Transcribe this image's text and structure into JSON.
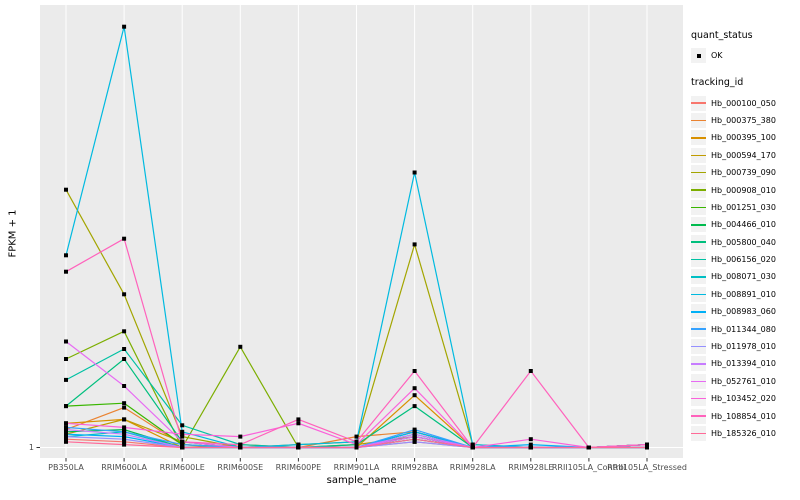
{
  "figure": {
    "y_axis": {
      "title": "FPKM + 1",
      "tick_labels": [
        "1"
      ]
    },
    "x_axis": {
      "title": "sample_name"
    }
  },
  "legend": {
    "quant_status": {
      "title": "quant_status",
      "items": [
        {
          "label": "OK",
          "shape": "black-point"
        }
      ]
    },
    "tracking": {
      "title": "tracking_id"
    }
  },
  "colors": {
    "panel_bg": "#EBEBEB",
    "grid": "#FFFFFF",
    "point": "#000000",
    "tick_text": "#4D4D4D",
    "tick_mark": "#333333",
    "legend_key_bg": "#F2F2F2"
  },
  "chart_data": {
    "type": "line",
    "title": "",
    "xlabel": "sample_name",
    "ylabel": "FPKM + 1",
    "y_scale": "log10",
    "ylim": [
      1,
      1600
    ],
    "yticks": [
      "1"
    ],
    "grid": "vertical-major-plus-y1",
    "legend_position": "right",
    "point_label": "OK",
    "categories": [
      "PB350LA",
      "RRIM600LA",
      "RRIM600LE",
      "RRIM600SE",
      "RRIM600PE",
      "RRIM901LA",
      "RRIM928BA",
      "RRIM928LA",
      "RRIM928LE",
      "RRII105LA_Control",
      "RRII105LA_Stressed"
    ],
    "series": [
      {
        "name": "Hb_000100_050",
        "color": "#F8766D",
        "values": [
          1.15,
          1.1,
          1.0,
          1.0,
          1.0,
          1.0,
          1.1,
          1.0,
          1.0,
          1.0,
          1.05
        ]
      },
      {
        "name": "Hb_000375_380",
        "color": "#EA8331",
        "values": [
          1.35,
          1.95,
          1.05,
          1.0,
          1.0,
          1.2,
          1.3,
          1.0,
          1.0,
          1.0,
          1.05
        ]
      },
      {
        "name": "Hb_000395_100",
        "color": "#D89000",
        "values": [
          1.5,
          1.6,
          1.0,
          1.05,
          1.0,
          1.0,
          2.4,
          1.0,
          1.0,
          1.0,
          1.0
        ]
      },
      {
        "name": "Hb_000594_170",
        "color": "#C09B00",
        "values": [
          1.25,
          1.6,
          1.1,
          1.0,
          1.0,
          1.05,
          1.2,
          1.0,
          1.0,
          1.0,
          1.05
        ]
      },
      {
        "name": "Hb_000739_090",
        "color": "#A3A500",
        "values": [
          75,
          13,
          1.2,
          1.0,
          1.05,
          1.1,
          30,
          1.05,
          1.0,
          1.0,
          1.05
        ]
      },
      {
        "name": "Hb_000908_010",
        "color": "#7CAE00",
        "values": [
          4.4,
          7.0,
          1.0,
          5.4,
          1.0,
          1.0,
          1.3,
          1.0,
          1.0,
          1.0,
          1.0
        ]
      },
      {
        "name": "Hb_001251_030",
        "color": "#39B600",
        "values": [
          2.0,
          2.1,
          1.05,
          1.0,
          1.0,
          1.0,
          1.2,
          1.0,
          1.0,
          1.0,
          1.05
        ]
      },
      {
        "name": "Hb_004466_010",
        "color": "#00BB4E",
        "values": [
          1.3,
          1.35,
          1.0,
          1.0,
          1.0,
          1.0,
          1.15,
          1.0,
          1.0,
          1.0,
          1.0
        ]
      },
      {
        "name": "Hb_005800_040",
        "color": "#00BF7D",
        "values": [
          2.0,
          4.4,
          1.1,
          1.0,
          1.0,
          1.05,
          2.0,
          1.0,
          1.0,
          1.0,
          1.05
        ]
      },
      {
        "name": "Hb_006156_020",
        "color": "#00C1A3",
        "values": [
          3.1,
          5.2,
          1.45,
          1.05,
          1.0,
          1.0,
          1.25,
          1.0,
          1.0,
          1.0,
          1.0
        ]
      },
      {
        "name": "Hb_008071_030",
        "color": "#00BFC4",
        "values": [
          1.2,
          1.3,
          1.0,
          1.0,
          1.0,
          1.0,
          1.2,
          1.0,
          1.0,
          1.0,
          1.05
        ]
      },
      {
        "name": "Hb_008891_010",
        "color": "#00BAE0",
        "values": [
          25,
          1150,
          1.3,
          1.0,
          1.05,
          1.1,
          100,
          1.05,
          1.0,
          1.0,
          1.05
        ]
      },
      {
        "name": "Hb_008983_060",
        "color": "#00B0F6",
        "values": [
          1.25,
          1.2,
          1.0,
          1.0,
          1.0,
          1.0,
          1.3,
          1.0,
          1.05,
          1.0,
          1.0
        ]
      },
      {
        "name": "Hb_011344_080",
        "color": "#35A2FF",
        "values": [
          1.4,
          1.3,
          1.05,
          1.0,
          1.0,
          1.0,
          1.35,
          1.0,
          1.0,
          1.0,
          1.05
        ]
      },
      {
        "name": "Hb_011978_010",
        "color": "#9590FF",
        "values": [
          1.2,
          1.15,
          1.0,
          1.0,
          1.0,
          1.0,
          1.1,
          1.0,
          1.0,
          1.0,
          1.0
        ]
      },
      {
        "name": "Hb_013394_010",
        "color": "#C77CFF",
        "values": [
          1.35,
          1.25,
          1.0,
          1.0,
          1.0,
          1.0,
          1.25,
          1.0,
          1.0,
          1.0,
          1.05
        ]
      },
      {
        "name": "Hb_052761_010",
        "color": "#E76BF3",
        "values": [
          5.9,
          2.8,
          1.1,
          1.0,
          1.0,
          1.0,
          1.2,
          1.0,
          1.0,
          1.0,
          1.0
        ]
      },
      {
        "name": "Hb_103452_020",
        "color": "#FA62DB",
        "values": [
          1.5,
          1.4,
          1.25,
          1.2,
          1.5,
          1.05,
          2.7,
          1.0,
          1.15,
          1.0,
          1.05
        ]
      },
      {
        "name": "Hb_108854_010",
        "color": "#FF62BC",
        "values": [
          19,
          33,
          1.1,
          1.05,
          1.6,
          1.1,
          3.6,
          1.0,
          3.6,
          1.0,
          1.05
        ]
      },
      {
        "name": "Hb_185326_010",
        "color": "#FF6A98",
        "values": [
          1.1,
          1.05,
          1.0,
          1.0,
          1.0,
          1.0,
          1.15,
          1.0,
          1.0,
          1.0,
          1.0
        ]
      }
    ]
  }
}
